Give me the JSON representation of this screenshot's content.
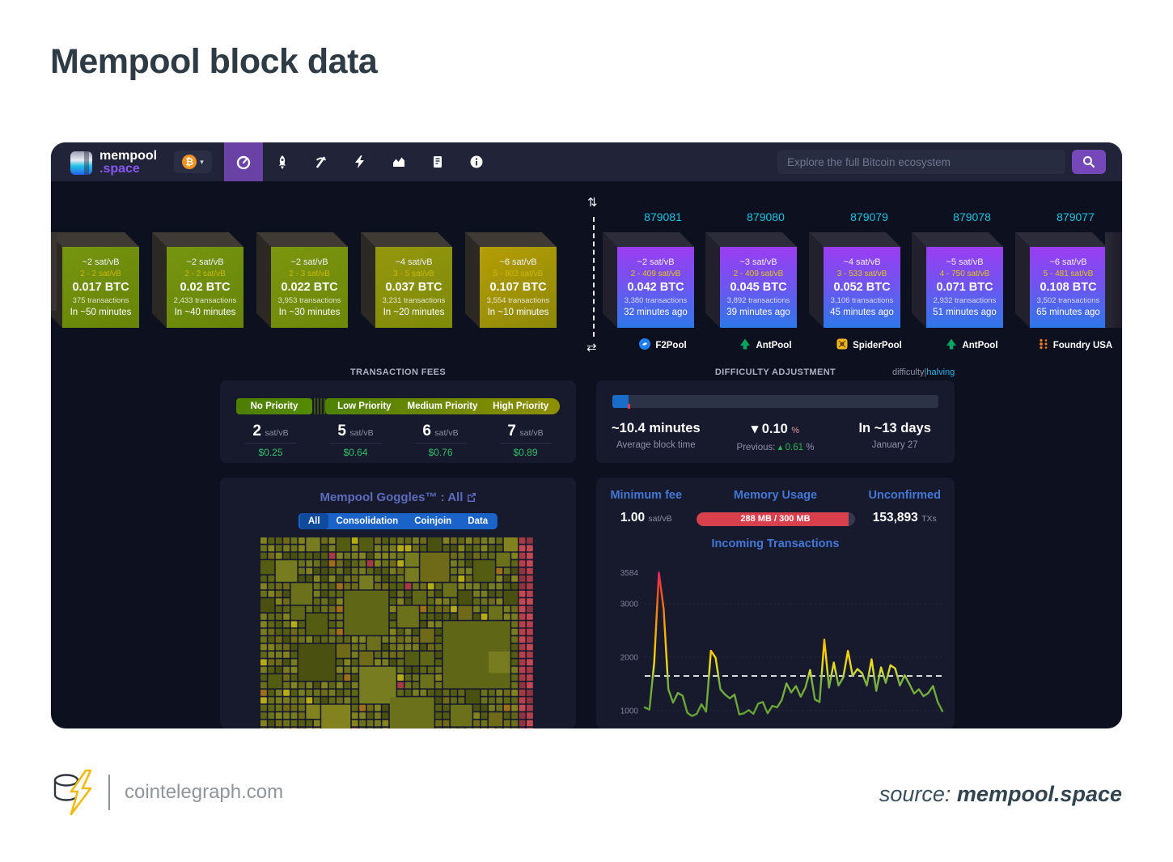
{
  "header": {
    "title": "Mempool block data"
  },
  "navbar": {
    "logo_top": "mempool",
    "logo_bottom": ".space",
    "currency_symbol": "₿",
    "search_placeholder": "Explore the full Bitcoin ecosystem",
    "nav_icons": [
      "dashboard-gauge",
      "rocket-accelerator",
      "mining-pickaxe",
      "lightning-network",
      "graphs-chart",
      "docs-book",
      "about-info"
    ]
  },
  "mempool_blocks": [
    {
      "median_fee": "~2 sat/vB",
      "fee_range": "2 - 2 sat/vB",
      "total_btc": "0.017 BTC",
      "tx_count": "375 transactions",
      "eta": "In ~50 minutes"
    },
    {
      "median_fee": "~2 sat/vB",
      "fee_range": "2 - 2 sat/vB",
      "total_btc": "0.02 BTC",
      "tx_count": "2,433 transactions",
      "eta": "In ~40 minutes"
    },
    {
      "median_fee": "~2 sat/vB",
      "fee_range": "2 - 3 sat/vB",
      "total_btc": "0.022 BTC",
      "tx_count": "3,953 transactions",
      "eta": "In ~30 minutes"
    },
    {
      "median_fee": "~4 sat/vB",
      "fee_range": "3 - 5 sat/vB",
      "total_btc": "0.037 BTC",
      "tx_count": "3,231 transactions",
      "eta": "In ~20 minutes"
    },
    {
      "median_fee": "~6 sat/vB",
      "fee_range": "5 - 802 sat/vB",
      "total_btc": "0.107 BTC",
      "tx_count": "3,554 transactions",
      "eta": "In ~10 minutes"
    }
  ],
  "mined_blocks": [
    {
      "height": "879081",
      "median_fee": "~2 sat/vB",
      "fee_range": "2 - 409 sat/vB",
      "total_btc": "0.042 BTC",
      "tx_count": "3,380 transactions",
      "time_ago": "32 minutes ago",
      "pool": "F2Pool",
      "pool_icon": "f2pool",
      "pool_color": "#1f7ff2"
    },
    {
      "height": "879080",
      "median_fee": "~3 sat/vB",
      "fee_range": "2 - 409 sat/vB",
      "total_btc": "0.045 BTC",
      "tx_count": "3,892 transactions",
      "time_ago": "39 minutes ago",
      "pool": "AntPool",
      "pool_icon": "antpool",
      "pool_color": "#00a560"
    },
    {
      "height": "879079",
      "median_fee": "~4 sat/vB",
      "fee_range": "3 - 533 sat/vB",
      "total_btc": "0.052 BTC",
      "tx_count": "3,106 transactions",
      "time_ago": "45 minutes ago",
      "pool": "SpiderPool",
      "pool_icon": "spiderpool",
      "pool_color": "#f5b81d"
    },
    {
      "height": "879078",
      "median_fee": "~5 sat/vB",
      "fee_range": "4 - 750 sat/vB",
      "total_btc": "0.071 BTC",
      "tx_count": "2,932 transactions",
      "time_ago": "51 minutes ago",
      "pool": "AntPool",
      "pool_icon": "antpool",
      "pool_color": "#00a560"
    },
    {
      "height": "879077",
      "median_fee": "~6 sat/vB",
      "fee_range": "5 - 481 sat/vB",
      "total_btc": "0.108 BTC",
      "tx_count": "3,502 transactions",
      "time_ago": "65 minutes ago",
      "pool": "Foundry USA",
      "pool_icon": "foundry",
      "pool_color": "#f57f17"
    }
  ],
  "fees_section": {
    "label": "TRANSACTION FEES",
    "unit": "sat/vB",
    "tiers": [
      {
        "label": "No Priority",
        "rate": "2",
        "usd": "$0.25"
      },
      {
        "label": "Low Priority",
        "rate": "5",
        "usd": "$0.64"
      },
      {
        "label": "Medium Priority",
        "rate": "6",
        "usd": "$0.76"
      },
      {
        "label": "High Priority",
        "rate": "7",
        "usd": "$0.89"
      }
    ]
  },
  "difficulty_section": {
    "label": "DIFFICULTY ADJUSTMENT",
    "link_difficulty": "difficulty",
    "link_pipe": "|",
    "link_halving": "halving",
    "progress_pct": 5,
    "avg_value": "~10.4 minutes",
    "avg_label": "Average block time",
    "change_arrow": "▾",
    "change_value": "0.10",
    "change_unit": "%",
    "prev_label": "Previous:",
    "prev_arrow": "▴",
    "prev_value": "0.61",
    "prev_unit": "%",
    "eta_value": "In ~13 days",
    "eta_label": "January 27"
  },
  "goggles": {
    "title": "Mempool Goggles™ : All",
    "tabs": [
      "All",
      "Consolidation",
      "Coinjoin",
      "Data"
    ],
    "active_tab": "All",
    "treemap_palette": [
      "#5f6616",
      "#6b711b",
      "#545c12",
      "#767c1f",
      "#4a500f",
      "#82821e",
      "#6f6a18"
    ],
    "treemap_accents": {
      "bright": "#b5ab13",
      "orange": "#a06e18",
      "red": "#a63a45"
    },
    "treemap_edge_reds": [
      "#a63a45",
      "#b64049",
      "#8f3340",
      "#c44852"
    ]
  },
  "stats": {
    "min_fee_label": "Minimum fee",
    "min_fee_value": "1.00",
    "min_fee_unit": "sat/vB",
    "memory_label": "Memory Usage",
    "memory_value": "288 MB / 300 MB",
    "memory_pct": 96,
    "unconfirmed_label": "Unconfirmed",
    "unconfirmed_value": "153,893",
    "unconfirmed_unit": "TXs"
  },
  "chart_data": {
    "type": "line",
    "title": "Incoming Transactions",
    "yticks": [
      1000,
      2000,
      3000,
      3584
    ],
    "ylim": [
      850,
      3650
    ],
    "threshold": 1650,
    "grid": true,
    "legend": "none",
    "values": [
      1060,
      1020,
      1900,
      3584,
      2900,
      1400,
      1150,
      1330,
      1280,
      960,
      900,
      940,
      1120,
      980,
      2120,
      1990,
      1400,
      1300,
      1230,
      1300,
      930,
      950,
      1010,
      940,
      1130,
      1160,
      950,
      1090,
      1060,
      1200,
      1510,
      1340,
      1460,
      1260,
      1430,
      1760,
      1210,
      1160,
      2330,
      1430,
      1900,
      1470,
      1620,
      2120,
      1650,
      1780,
      1700,
      1470,
      1960,
      1370,
      1810,
      1520,
      1850,
      1790,
      1470,
      1660,
      1500,
      1320,
      1400,
      1270,
      1330,
      1460,
      1160,
      990
    ],
    "line_colors": {
      "low": "#66a233",
      "mid": "#ffd400",
      "high": "#f4511e",
      "peak": "#ee2060"
    },
    "threshold_color": "#ffffff"
  },
  "footer": {
    "site": "cointelegraph.com",
    "source_label": "source:",
    "source_value": "mempool.space"
  }
}
